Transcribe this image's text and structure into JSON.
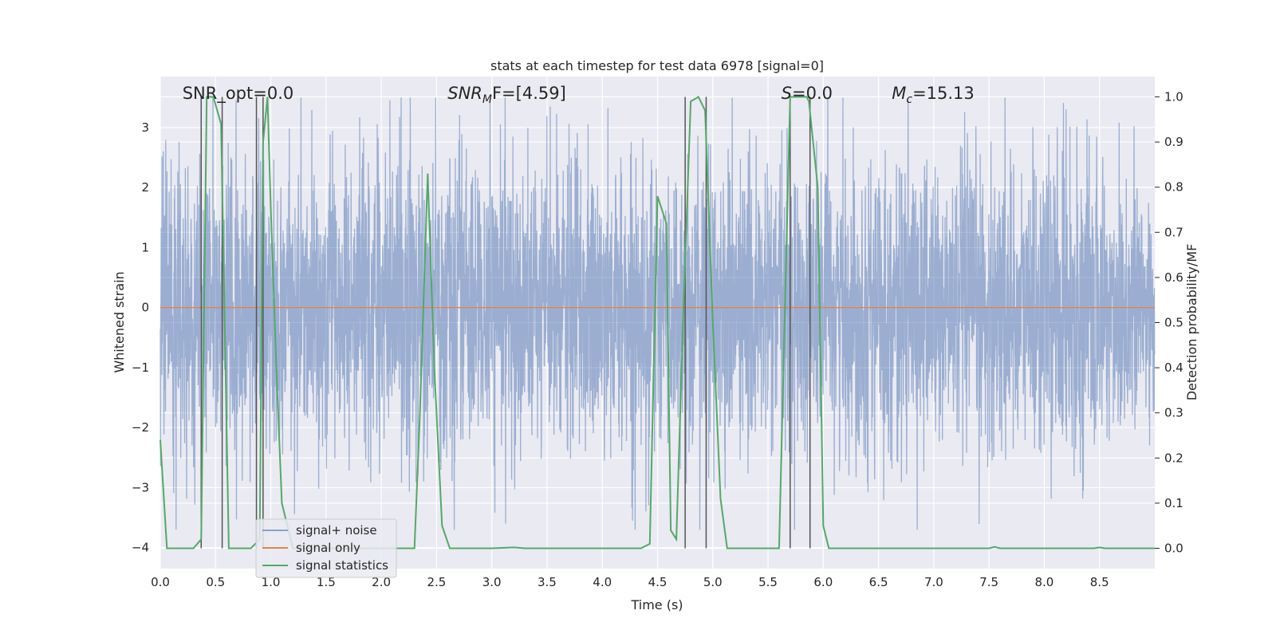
{
  "chart_data": {
    "type": "line",
    "title": "stats at each timestep for test data 6978 [signal=0]",
    "xlabel": "Time (s)",
    "ylabel": "Whitened strain",
    "y2label": "Detection probability/MF",
    "xlim": [
      0.0,
      9.0
    ],
    "ylim": [
      -4.35,
      3.85
    ],
    "y2lim": [
      -0.045,
      1.045
    ],
    "x_ticks": [
      "0.0",
      "0.5",
      "1.0",
      "1.5",
      "2.0",
      "2.5",
      "3.0",
      "3.5",
      "4.0",
      "4.5",
      "5.0",
      "5.5",
      "6.0",
      "6.5",
      "7.0",
      "7.5",
      "8.0",
      "8.5"
    ],
    "y_ticks": [
      "3",
      "2",
      "1",
      "0",
      "−1",
      "−2",
      "−3",
      "−4"
    ],
    "y2_ticks": [
      "1.0",
      "0.9",
      "0.8",
      "0.7",
      "0.6",
      "0.5",
      "0.4",
      "0.3",
      "0.2",
      "0.1",
      "0.0"
    ],
    "grid": true,
    "legend_position": "lower-left",
    "series": [
      {
        "name": "signal+ noise",
        "axis": "left",
        "color": "#4c72b0",
        "description": "whitened noise, ~1.2 std, amplitude within ±3.7",
        "sample_rate": 512,
        "std": 1.2
      },
      {
        "name": "signal only",
        "axis": "left",
        "color": "#dd8452",
        "x": [
          0.0,
          9.0
        ],
        "values": [
          0.0,
          0.0
        ]
      },
      {
        "name": "signal statistics",
        "axis": "right",
        "color": "#55a868",
        "x": [
          0.0,
          0.06,
          0.3,
          0.37,
          0.42,
          0.48,
          0.55,
          0.62,
          0.82,
          0.9,
          0.93,
          0.97,
          1.0,
          1.05,
          1.1,
          1.2,
          1.5,
          2.0,
          2.3,
          2.35,
          2.42,
          2.48,
          2.55,
          2.62,
          2.7,
          3.0,
          3.2,
          3.3,
          3.5,
          4.0,
          4.35,
          4.43,
          4.5,
          4.58,
          4.62,
          4.67,
          4.73,
          4.8,
          4.87,
          4.93,
          5.0,
          5.07,
          5.13,
          5.4,
          5.6,
          5.65,
          5.7,
          5.75,
          5.85,
          5.87,
          5.95,
          6.0,
          6.05,
          6.5,
          7.0,
          7.5,
          7.55,
          7.6,
          8.0,
          8.45,
          8.5,
          8.55,
          9.0
        ],
        "values": [
          0.24,
          0.0,
          0.0,
          0.02,
          1.0,
          1.0,
          0.94,
          0.0,
          0.0,
          0.02,
          0.9,
          1.0,
          0.75,
          0.4,
          0.1,
          0.0,
          0.0,
          0.0,
          0.0,
          0.3,
          0.83,
          0.4,
          0.05,
          0.0,
          0.0,
          0.0,
          0.002,
          0.0,
          0.0,
          0.0,
          0.0,
          0.01,
          0.78,
          0.72,
          0.04,
          0.02,
          0.5,
          0.99,
          1.0,
          0.97,
          0.5,
          0.11,
          0.0,
          0.0,
          0.0,
          0.5,
          1.0,
          1.0,
          1.0,
          0.99,
          0.8,
          0.05,
          0.0,
          0.0,
          0.0,
          0.0,
          0.003,
          0.0,
          0.0,
          0.0,
          0.002,
          0.0,
          0.0
        ]
      }
    ],
    "vlines_s": [
      0.37,
      0.56,
      0.87,
      0.93,
      4.75,
      4.94,
      5.7,
      5.88
    ],
    "annotations": [
      {
        "id": "snr_opt",
        "text": "SNR_opt=0.0",
        "x": 0.2
      },
      {
        "id": "snr_mf",
        "text": "SNR",
        "sub": "M",
        "suffix": "F=[4.59]",
        "x": 2.6
      },
      {
        "id": "s",
        "text": "S",
        "suffix": "=0.0",
        "x": 5.62
      },
      {
        "id": "mc",
        "text": "M",
        "sub": "c",
        "suffix": "=15.13",
        "x": 6.62
      }
    ]
  }
}
